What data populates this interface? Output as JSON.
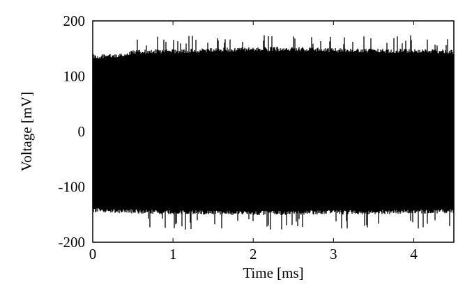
{
  "chart_data": {
    "type": "line",
    "xlabel": "Time [ms]",
    "ylabel": "Voltage [mV]",
    "xlim": [
      0,
      4.5
    ],
    "ylim": [
      -200,
      200
    ],
    "xticks": [
      0,
      1,
      2,
      3,
      4
    ],
    "yticks": [
      -200,
      -100,
      0,
      100,
      200
    ],
    "grid": false,
    "series": [
      {
        "color": "#000000",
        "envelope": {
          "x": [
            0,
            0.25,
            0.5,
            0.75,
            1.0,
            1.25,
            1.5,
            1.75,
            2.0,
            2.25,
            2.5,
            2.75,
            3.0,
            3.25,
            3.5,
            3.75,
            4.0,
            4.25,
            4.5
          ],
          "upper": [
            140,
            140,
            147,
            149,
            149,
            150,
            151,
            152,
            153,
            153,
            153,
            152,
            151,
            151,
            150,
            150,
            149,
            149,
            148
          ],
          "lower": [
            -146,
            -147,
            -148,
            -149,
            -150,
            -150,
            -150,
            -151,
            -151,
            -151,
            -151,
            -150,
            -150,
            -150,
            -150,
            -149,
            -149,
            -148,
            -148
          ],
          "upper_peak": 174,
          "lower_peak": -178
        }
      }
    ]
  }
}
